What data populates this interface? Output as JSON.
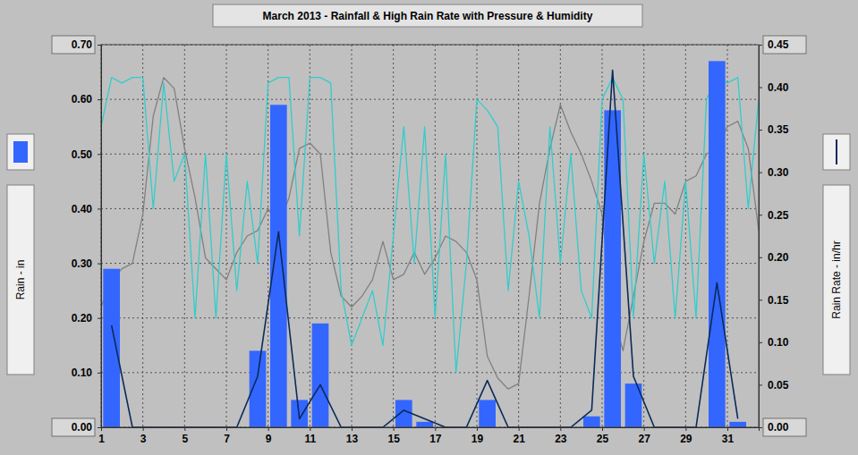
{
  "chart_data": {
    "type": "combo",
    "title": "March 2013 - Rainfall & High Rain Rate with Pressure & Humidity",
    "y_label": "Rain - in",
    "y2_label": "Rain Rate - in/hr",
    "grid": true,
    "xlim": [
      1,
      32.5
    ],
    "xticks": [
      1,
      3,
      5,
      7,
      9,
      11,
      13,
      15,
      17,
      19,
      21,
      23,
      25,
      27,
      29,
      31
    ],
    "ylim": [
      0,
      0.7
    ],
    "yticks": [
      {
        "value": 0,
        "label": "0.00"
      },
      {
        "value": 0.1,
        "label": "0.10"
      },
      {
        "value": 0.2,
        "label": "0.20"
      },
      {
        "value": 0.3,
        "label": "0.30"
      },
      {
        "value": 0.4,
        "label": "0.40"
      },
      {
        "value": 0.5,
        "label": "0.50"
      },
      {
        "value": 0.6,
        "label": "0.60"
      },
      {
        "value": 0.7,
        "label": "0.70"
      }
    ],
    "y2lim": [
      0,
      0.45
    ],
    "y2ticks": [
      {
        "value": 0,
        "label": "0.00"
      },
      {
        "value": 0.05,
        "label": "0.05"
      },
      {
        "value": 0.1,
        "label": "0.10"
      },
      {
        "value": 0.15,
        "label": "0.15"
      },
      {
        "value": 0.2,
        "label": "0.20"
      },
      {
        "value": 0.25,
        "label": "0.25"
      },
      {
        "value": 0.3,
        "label": "0.30"
      },
      {
        "value": 0.35,
        "label": "0.35"
      },
      {
        "value": 0.4,
        "label": "0.40"
      },
      {
        "value": 0.45,
        "label": "0.45"
      }
    ],
    "x": [
      1.5,
      2.5,
      3.5,
      4.5,
      5.5,
      6.5,
      7.5,
      8.5,
      9.5,
      10.5,
      11.5,
      12.5,
      13.5,
      14.5,
      15.5,
      16.5,
      17.5,
      18.5,
      19.5,
      20.5,
      21.5,
      22.5,
      23.5,
      24.5,
      25.5,
      26.5,
      27.5,
      28.5,
      29.5,
      30.5,
      31.5
    ],
    "series": [
      {
        "type": "bar",
        "color": "#3366ff",
        "values": [
          0.29,
          0,
          0,
          0,
          0,
          0,
          0,
          0.14,
          0.59,
          0.05,
          0.19,
          0,
          0,
          0,
          0.05,
          0.01,
          0,
          0,
          0.05,
          0,
          0,
          0,
          0,
          0.02,
          0.58,
          0.08,
          0,
          0,
          0,
          0.67,
          0.01
        ]
      },
      {
        "type": "line",
        "axis": "y2",
        "color": "#0a2a5a",
        "values": [
          0.12,
          0,
          0,
          0,
          0,
          0,
          0,
          0.06,
          0.23,
          0.01,
          0.05,
          0,
          0,
          0,
          0.02,
          0.01,
          0,
          0,
          0.055,
          0,
          0,
          0,
          0,
          0.02,
          0.42,
          0.06,
          0,
          0,
          0,
          0.17,
          0.01
        ]
      },
      {
        "type": "line",
        "color": "#808080",
        "x": [
          1,
          1.5,
          2,
          2.5,
          3,
          3.5,
          4,
          4.5,
          5,
          5.5,
          6,
          6.5,
          7,
          7.5,
          8,
          8.5,
          9,
          9.5,
          10,
          10.5,
          11,
          11.5,
          12,
          12.5,
          13,
          13.5,
          14,
          14.5,
          15,
          15.5,
          16,
          16.5,
          17,
          17.5,
          18,
          18.5,
          19,
          19.5,
          20,
          20.5,
          21,
          21.5,
          22,
          22.5,
          23,
          23.5,
          24,
          24.5,
          25,
          25.5,
          26,
          26.5,
          27,
          27.5,
          28,
          28.5,
          29,
          29.5,
          30,
          30.5,
          31,
          31.5,
          32,
          32.5
        ],
        "values": [
          0.22,
          0.27,
          0.29,
          0.3,
          0.39,
          0.57,
          0.64,
          0.62,
          0.51,
          0.42,
          0.31,
          0.29,
          0.27,
          0.32,
          0.35,
          0.36,
          0.4,
          0.37,
          0.42,
          0.51,
          0.52,
          0.5,
          0.32,
          0.24,
          0.22,
          0.24,
          0.27,
          0.34,
          0.27,
          0.28,
          0.32,
          0.28,
          0.31,
          0.35,
          0.34,
          0.32,
          0.27,
          0.13,
          0.09,
          0.07,
          0.08,
          0.24,
          0.41,
          0.51,
          0.59,
          0.54,
          0.5,
          0.45,
          0.39,
          0.21,
          0.14,
          0.24,
          0.34,
          0.41,
          0.41,
          0.39,
          0.45,
          0.46,
          0.5,
          0.51,
          0.55,
          0.56,
          0.51,
          0.36
        ]
      },
      {
        "type": "line",
        "color": "#33cccc",
        "x": [
          1,
          1.5,
          2,
          2.5,
          3,
          3.5,
          4,
          4.5,
          5,
          5.5,
          6,
          6.5,
          7,
          7.5,
          8,
          8.5,
          9,
          9.5,
          10,
          10.5,
          11,
          11.5,
          12,
          12.5,
          13,
          13.5,
          14,
          14.5,
          15,
          15.5,
          16,
          16.5,
          17,
          17.5,
          18,
          18.5,
          19,
          19.5,
          20,
          20.5,
          21,
          21.5,
          22,
          22.5,
          23,
          23.5,
          24,
          24.5,
          25,
          25.5,
          26,
          26.5,
          27,
          27.5,
          28,
          28.5,
          29,
          29.5,
          30,
          30.5,
          31,
          31.5,
          32,
          32.5
        ],
        "values": [
          0.55,
          0.64,
          0.63,
          0.64,
          0.64,
          0.4,
          0.63,
          0.45,
          0.5,
          0.2,
          0.5,
          0.2,
          0.5,
          0.25,
          0.45,
          0.3,
          0.63,
          0.64,
          0.64,
          0.35,
          0.64,
          0.64,
          0.63,
          0.25,
          0.15,
          0.2,
          0.25,
          0.15,
          0.35,
          0.55,
          0.3,
          0.55,
          0.2,
          0.5,
          0.1,
          0.3,
          0.6,
          0.58,
          0.55,
          0.25,
          0.45,
          0.35,
          0.2,
          0.55,
          0.3,
          0.5,
          0.25,
          0.2,
          0.6,
          0.64,
          0.6,
          0.2,
          0.5,
          0.3,
          0.45,
          0.2,
          0.45,
          0.2,
          0.6,
          0.64,
          0.63,
          0.64,
          0.4,
          0.6
        ]
      }
    ]
  }
}
